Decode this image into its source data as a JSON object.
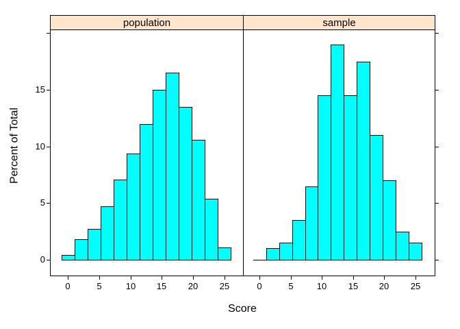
{
  "chart_data": {
    "type": "bar",
    "subtype": "lattice-histogram",
    "title": "",
    "xlabel": "Score",
    "ylabel": "Percent of Total",
    "legend": "none",
    "grid": false,
    "bar_fill": "#00FFFF",
    "bar_border": "#000000",
    "strip_bg": "#FFE5CC",
    "xlim": [
      -2.8,
      27.9
    ],
    "ylim": [
      -1.4,
      20.3
    ],
    "x_ticks": [
      0,
      5,
      10,
      15,
      20,
      25
    ],
    "y_ticks_labeled": [
      0,
      5,
      10,
      15
    ],
    "y_ticks_unlabeled": [
      20
    ],
    "bin_edges": [
      -1,
      1.08,
      3.15,
      5.23,
      7.31,
      9.38,
      11.46,
      13.54,
      15.62,
      17.69,
      19.77,
      21.85,
      23.92,
      26
    ],
    "panels": [
      {
        "name": "population",
        "percents": [
          0.4,
          1.8,
          2.7,
          4.7,
          7.1,
          9.4,
          12.0,
          15.0,
          16.5,
          13.5,
          10.6,
          5.4,
          1.1
        ]
      },
      {
        "name": "sample",
        "percents": [
          0,
          1.0,
          1.5,
          3.5,
          6.5,
          14.5,
          19.0,
          14.5,
          17.5,
          11.0,
          7.0,
          2.5,
          1.5
        ]
      }
    ]
  }
}
